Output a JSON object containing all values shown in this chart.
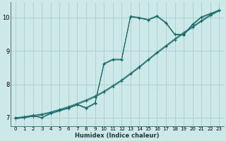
{
  "xlabel": "Humidex (Indice chaleur)",
  "bg_color": "#cce8e8",
  "grid_color": "#aacccc",
  "line_color": "#1a6e6a",
  "xlim": [
    -0.5,
    23.5
  ],
  "ylim": [
    6.75,
    10.45
  ],
  "xticks": [
    0,
    1,
    2,
    3,
    4,
    5,
    6,
    7,
    8,
    9,
    10,
    11,
    12,
    13,
    14,
    15,
    16,
    17,
    18,
    19,
    20,
    21,
    22,
    23
  ],
  "yticks": [
    7,
    8,
    9,
    10
  ],
  "straight1_x": [
    0,
    1,
    2,
    3,
    4,
    5,
    6,
    7,
    8,
    9,
    10,
    11,
    12,
    13,
    14,
    15,
    16,
    17,
    18,
    19,
    20,
    21,
    22,
    23
  ],
  "straight1_y": [
    6.97,
    7.0,
    7.04,
    7.08,
    7.14,
    7.22,
    7.3,
    7.4,
    7.5,
    7.62,
    7.76,
    7.93,
    8.1,
    8.3,
    8.5,
    8.72,
    8.93,
    9.13,
    9.33,
    9.52,
    9.7,
    9.88,
    10.05,
    10.2
  ],
  "straight2_x": [
    0,
    1,
    2,
    3,
    4,
    5,
    6,
    7,
    8,
    9,
    10,
    11,
    12,
    13,
    14,
    15,
    16,
    17,
    18,
    19,
    20,
    21,
    22,
    23
  ],
  "straight2_y": [
    7.0,
    7.03,
    7.07,
    7.11,
    7.17,
    7.25,
    7.33,
    7.43,
    7.53,
    7.65,
    7.79,
    7.96,
    8.13,
    8.33,
    8.53,
    8.75,
    8.96,
    9.16,
    9.36,
    9.55,
    9.73,
    9.91,
    10.08,
    10.23
  ],
  "wavy1_x": [
    0,
    1,
    2,
    3,
    4,
    5,
    6,
    7,
    8,
    9,
    10,
    11,
    12,
    13,
    14,
    15,
    16,
    17,
    18,
    19,
    20,
    21,
    22,
    23
  ],
  "wavy1_y": [
    6.97,
    7.0,
    7.05,
    7.0,
    7.12,
    7.2,
    7.28,
    7.38,
    7.28,
    7.42,
    8.6,
    8.73,
    8.73,
    10.02,
    9.98,
    9.92,
    10.03,
    9.83,
    9.48,
    9.47,
    9.78,
    10.0,
    10.1,
    10.2
  ],
  "wavy2_x": [
    0,
    1,
    2,
    3,
    4,
    5,
    6,
    7,
    8,
    9,
    10,
    11,
    12,
    13,
    14,
    15,
    16,
    17,
    18,
    19,
    20,
    21,
    22,
    23
  ],
  "wavy2_y": [
    7.0,
    7.0,
    7.08,
    7.0,
    7.14,
    7.22,
    7.3,
    7.4,
    7.3,
    7.44,
    8.62,
    8.75,
    8.75,
    10.04,
    10.0,
    9.94,
    10.05,
    9.85,
    9.5,
    9.49,
    9.8,
    10.02,
    10.12,
    10.22
  ]
}
